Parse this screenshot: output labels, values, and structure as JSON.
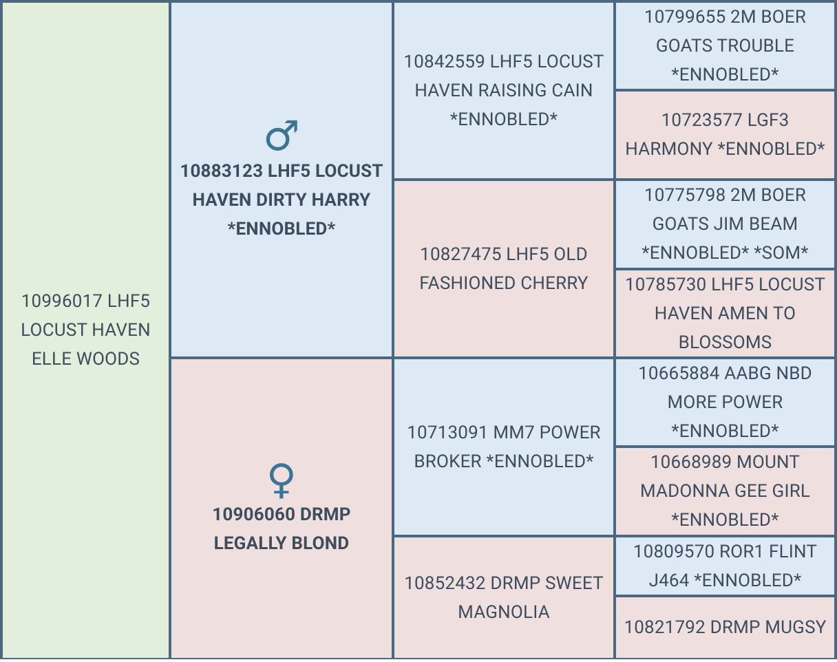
{
  "subject": "10996017 LHF5 LOCUST HAVEN ELLE WOODS",
  "sire": {
    "symbol": "♂",
    "name": "10883123 LHF5 LOCUST HAVEN DIRTY HARRY *ENNOBLED*"
  },
  "dam": {
    "symbol": "♀",
    "name": "10906060 DRMP LEGALLY BLOND"
  },
  "grandparents": [
    "10842559 LHF5 LOCUST HAVEN RAISING CAIN *ENNOBLED*",
    "10827475 LHF5 OLD FASHIONED CHERRY",
    "10713091 MM7 POWER BROKER *ENNOBLED*",
    "10852432 DRMP SWEET MAGNOLIA"
  ],
  "great_grandparents": [
    "10799655 2M BOER GOATS TROUBLE *ENNOBLED*",
    "10723577 LGF3 HARMONY *ENNOBLED*",
    "10775798 2M BOER GOATS JIM BEAM *ENNOBLED* *SOM*",
    "10785730 LHF5 LOCUST HAVEN AMEN TO BLOSSOMS",
    "10665884 AABG NBD MORE POWER *ENNOBLED*",
    "10668989 MOUNT MADONNA GEE GIRL *ENNOBLED*",
    "10809570 ROR1 FLINT J464 *ENNOBLED*",
    "10821792 DRMP MUGSY"
  ]
}
